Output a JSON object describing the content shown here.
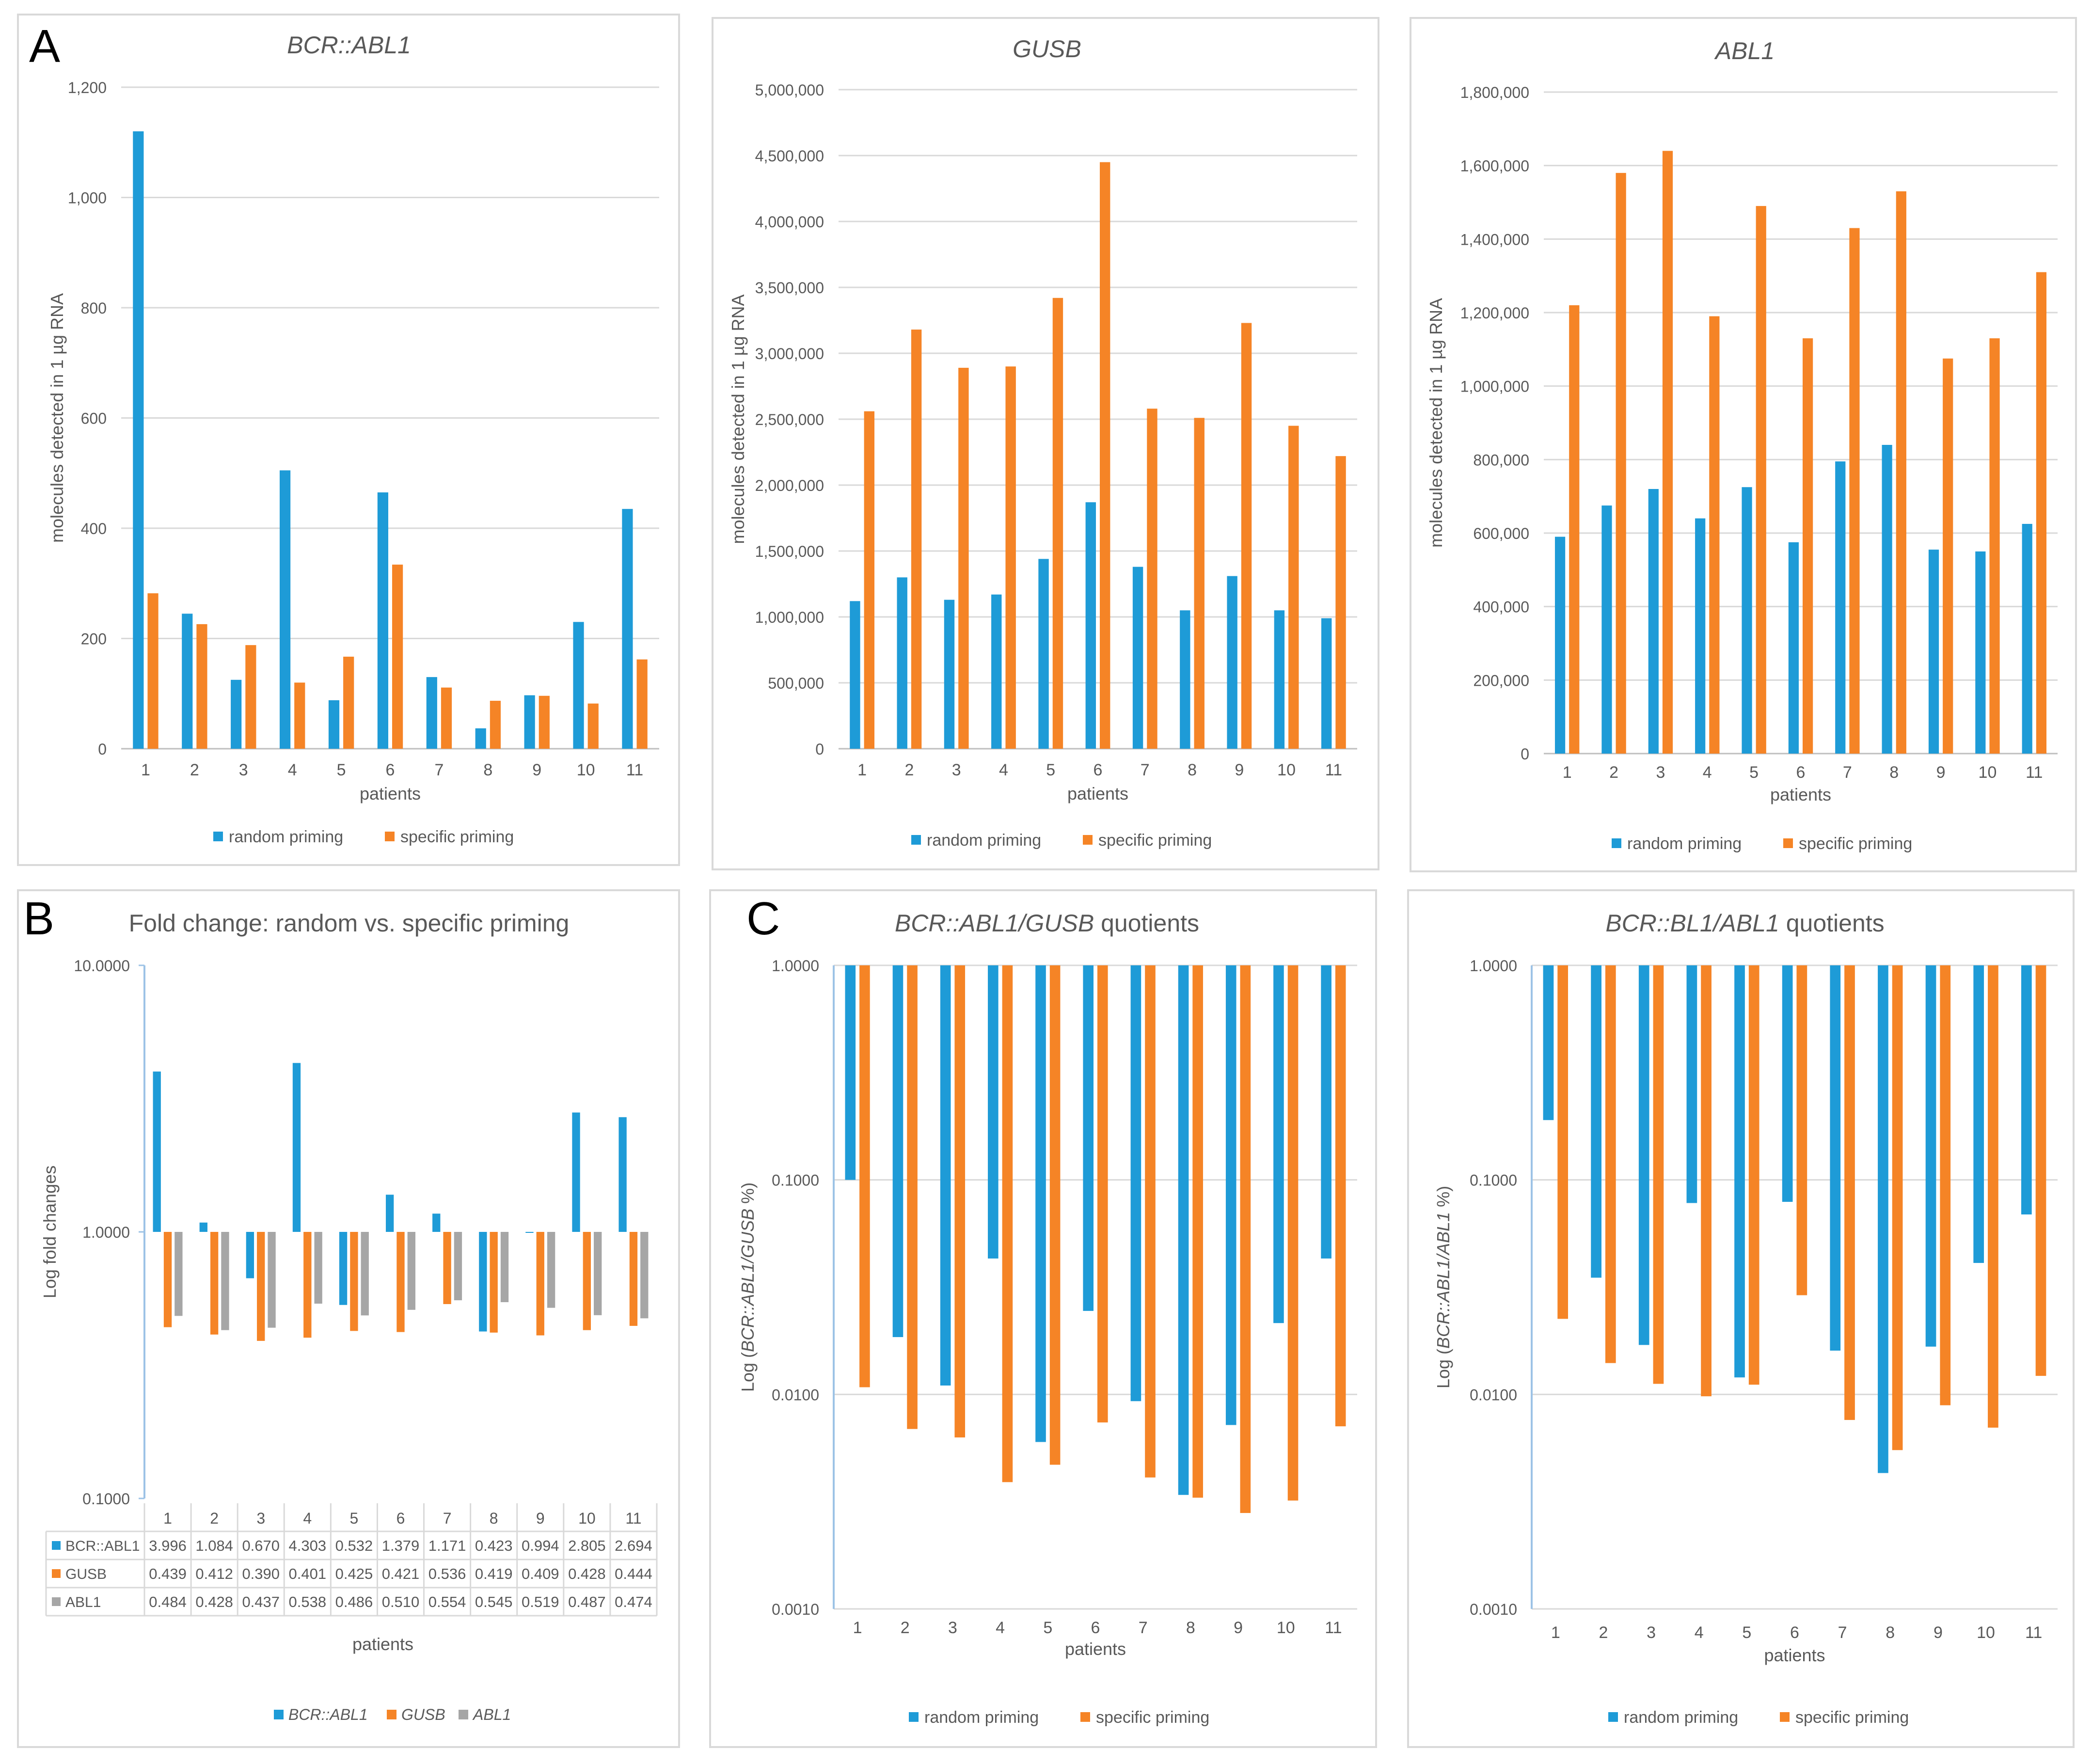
{
  "colors": {
    "random": "#1E9BD7",
    "specific": "#F58426",
    "abl1": "#A6A6A6",
    "grid": "#D9D9D9",
    "axis": "#BFBFBF",
    "text": "#595959"
  },
  "panel_letters": {
    "a": "A",
    "b": "B",
    "c": "C"
  },
  "chart_data": [
    {
      "id": "a1",
      "type": "bar",
      "title": "BCR::ABL1",
      "title_italic": true,
      "xlabel": "patients",
      "ylabel": "molecules detected in 1 µg RNA",
      "categories": [
        "1",
        "2",
        "3",
        "4",
        "5",
        "6",
        "7",
        "8",
        "9",
        "10",
        "11"
      ],
      "ylim": [
        0,
        1200
      ],
      "yticks": [
        0,
        200,
        400,
        600,
        800,
        1000,
        1200
      ],
      "ytick_labels": [
        "0",
        "200",
        "400",
        "600",
        "800",
        "1,000",
        "1,200"
      ],
      "series": [
        {
          "name": "random priming",
          "color": "#1E9BD7",
          "values": [
            1120,
            245,
            125,
            505,
            88,
            465,
            130,
            37,
            97,
            230,
            435
          ]
        },
        {
          "name": "specific priming",
          "color": "#F58426",
          "values": [
            282,
            226,
            188,
            120,
            167,
            334,
            111,
            87,
            96,
            82,
            162
          ]
        }
      ]
    },
    {
      "id": "a2",
      "type": "bar",
      "title": "GUSB",
      "title_italic": true,
      "xlabel": "patients",
      "ylabel": "molecules detected in 1 µg RNA",
      "categories": [
        "1",
        "2",
        "3",
        "4",
        "5",
        "6",
        "7",
        "8",
        "9",
        "10",
        "11"
      ],
      "ylim": [
        0,
        5000000
      ],
      "yticks": [
        0,
        500000,
        1000000,
        1500000,
        2000000,
        2500000,
        3000000,
        3500000,
        4000000,
        4500000,
        5000000
      ],
      "ytick_labels": [
        "0",
        "500,000",
        "1,000,000",
        "1,500,000",
        "2,000,000",
        "2,500,000",
        "3,000,000",
        "3,500,000",
        "4,000,000",
        "4,500,000",
        "5,000,000"
      ],
      "series": [
        {
          "name": "random priming",
          "color": "#1E9BD7",
          "values": [
            1120000,
            1300000,
            1130000,
            1170000,
            1440000,
            1870000,
            1380000,
            1050000,
            1310000,
            1050000,
            990000
          ]
        },
        {
          "name": "specific priming",
          "color": "#F58426",
          "values": [
            2560000,
            3180000,
            2890000,
            2900000,
            3420000,
            4450000,
            2580000,
            2510000,
            3230000,
            2450000,
            2220000
          ]
        }
      ]
    },
    {
      "id": "a3",
      "type": "bar",
      "title": "ABL1",
      "title_italic": true,
      "xlabel": "patients",
      "ylabel": "molecules detected in 1 µg RNA",
      "categories": [
        "1",
        "2",
        "3",
        "4",
        "5",
        "6",
        "7",
        "8",
        "9",
        "10",
        "11"
      ],
      "ylim": [
        0,
        1800000
      ],
      "yticks": [
        0,
        200000,
        400000,
        600000,
        800000,
        1000000,
        1200000,
        1400000,
        1600000,
        1800000
      ],
      "ytick_labels": [
        "0",
        "200,000",
        "400,000",
        "600,000",
        "800,000",
        "1,000,000",
        "1,200,000",
        "1,400,000",
        "1,600,000",
        "1,800,000"
      ],
      "series": [
        {
          "name": "random priming",
          "color": "#1E9BD7",
          "values": [
            590000,
            675000,
            720000,
            640000,
            725000,
            575000,
            795000,
            840000,
            555000,
            550000,
            625000
          ]
        },
        {
          "name": "specific priming",
          "color": "#F58426",
          "values": [
            1220000,
            1580000,
            1640000,
            1190000,
            1490000,
            1130000,
            1430000,
            1530000,
            1075000,
            1130000,
            1310000
          ]
        }
      ]
    },
    {
      "id": "b",
      "type": "bar",
      "title": "Fold change: random vs. specific priming",
      "title_italic": false,
      "xlabel": "patients",
      "ylabel": "Log fold changes",
      "categories": [
        "1",
        "2",
        "3",
        "4",
        "5",
        "6",
        "7",
        "8",
        "9",
        "10",
        "11"
      ],
      "yscale": "log",
      "ylim": [
        0.1,
        10
      ],
      "yticks": [
        0.1,
        1,
        10
      ],
      "ytick_labels": [
        "0.1000",
        "1.0000",
        "10.0000"
      ],
      "baseline": 1,
      "series": [
        {
          "name": "BCR::ABL1",
          "color": "#1E9BD7",
          "values": [
            3.996,
            1.084,
            0.67,
            4.303,
            0.532,
            1.379,
            1.171,
            0.423,
            0.994,
            2.805,
            2.694
          ],
          "labels": [
            "3.996",
            "1.084",
            "0.670",
            "4.303",
            "0.532",
            "1.379",
            "1.171",
            "0.423",
            "0.994",
            "2.805",
            "2.694"
          ]
        },
        {
          "name": "GUSB",
          "color": "#F58426",
          "values": [
            0.439,
            0.412,
            0.39,
            0.401,
            0.425,
            0.421,
            0.536,
            0.419,
            0.409,
            0.428,
            0.444
          ],
          "labels": [
            "0.439",
            "0.412",
            "0.390",
            "0.401",
            "0.425",
            "0.421",
            "0.536",
            "0.419",
            "0.409",
            "0.428",
            "0.444"
          ]
        },
        {
          "name": "ABL1",
          "color": "#A6A6A6",
          "values": [
            0.484,
            0.428,
            0.437,
            0.538,
            0.486,
            0.51,
            0.554,
            0.545,
            0.519,
            0.487,
            0.474
          ],
          "labels": [
            "0.484",
            "0.428",
            "0.437",
            "0.538",
            "0.486",
            "0.510",
            "0.554",
            "0.545",
            "0.519",
            "0.487",
            "0.474"
          ]
        }
      ]
    },
    {
      "id": "c1",
      "type": "bar",
      "title": "BCR::ABL1/GUSB",
      "title_suffix": " quotients",
      "title_italic": true,
      "xlabel": "patients",
      "ylabel_pre": "Log (",
      "ylabel_italic": "BCR::ABL1/GUSB",
      "ylabel_post": " %)",
      "categories": [
        "1",
        "2",
        "3",
        "4",
        "5",
        "6",
        "7",
        "8",
        "9",
        "10",
        "11"
      ],
      "yscale": "log",
      "ylim": [
        0.001,
        1
      ],
      "yticks": [
        0.001,
        0.01,
        0.1,
        1
      ],
      "ytick_labels": [
        "0.0010",
        "0.0100",
        "0.1000",
        "1.0000"
      ],
      "baseline": 1,
      "series": [
        {
          "name": "random priming",
          "color": "#1E9BD7",
          "values": [
            0.1,
            0.0185,
            0.011,
            0.043,
            0.006,
            0.0245,
            0.0093,
            0.0034,
            0.0072,
            0.0215,
            0.043
          ]
        },
        {
          "name": "specific priming",
          "color": "#F58426",
          "values": [
            0.0108,
            0.0069,
            0.0063,
            0.0039,
            0.0047,
            0.0074,
            0.0041,
            0.0033,
            0.0028,
            0.0032,
            0.0071
          ]
        }
      ]
    },
    {
      "id": "c2",
      "type": "bar",
      "title": "BCR::BL1/ABL1",
      "title_suffix": " quotients",
      "title_italic": true,
      "xlabel": "patients",
      "ylabel_pre": "Log (",
      "ylabel_italic": "BCR::ABL1/ABL1",
      "ylabel_post": " %)",
      "categories": [
        "1",
        "2",
        "3",
        "4",
        "5",
        "6",
        "7",
        "8",
        "9",
        "10",
        "11"
      ],
      "yscale": "log",
      "ylim": [
        0.001,
        1
      ],
      "yticks": [
        0.001,
        0.01,
        0.1,
        1
      ],
      "ytick_labels": [
        "0.0010",
        "0.0100",
        "0.1000",
        "1.0000"
      ],
      "baseline": 1,
      "series": [
        {
          "name": "random priming",
          "color": "#1E9BD7",
          "values": [
            0.19,
            0.035,
            0.017,
            0.078,
            0.012,
            0.079,
            0.016,
            0.0043,
            0.0167,
            0.041,
            0.069
          ]
        },
        {
          "name": "specific priming",
          "color": "#F58426",
          "values": [
            0.0225,
            0.014,
            0.0112,
            0.0098,
            0.0111,
            0.029,
            0.0076,
            0.0055,
            0.0089,
            0.007,
            0.0122
          ]
        }
      ]
    }
  ]
}
